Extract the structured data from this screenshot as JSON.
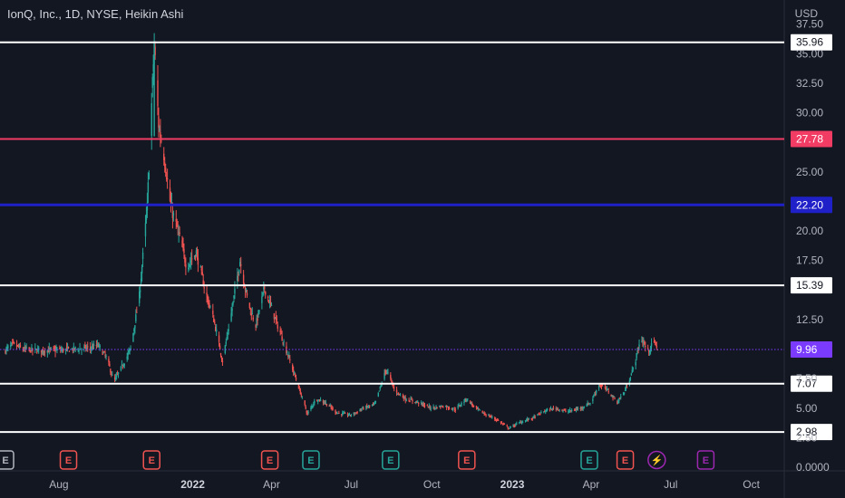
{
  "header": {
    "title": "IonQ, Inc., 1D, NYSE, Heikin Ashi",
    "currency": "USD"
  },
  "colors": {
    "background": "#131722",
    "up": "#26a69a",
    "down": "#ef5350",
    "white_level": "#ffffff",
    "red_level": "#f23c64",
    "blue_level": "#2020c8",
    "purple_level": "#7b3bff",
    "grid": "#1e222d",
    "earnings_red": "#ef5350",
    "earnings_green": "#26a69a",
    "earnings_purple": "#9c27b0",
    "earnings_gray": "#b2b5be"
  },
  "chart_data": {
    "type": "candlestick",
    "title": "IonQ, Inc., 1D, NYSE, Heikin Ashi",
    "ylim": [
      0,
      38.5
    ],
    "y_ticks": [
      "37.50",
      "35.00",
      "32.50",
      "30.00",
      "25.00",
      "20.00",
      "17.50",
      "12.50",
      "7.50",
      "5.00",
      "2.50",
      "0.0000"
    ],
    "x_ticks": [
      {
        "label": "Aug",
        "strong": false
      },
      {
        "label": "2022",
        "strong": true
      },
      {
        "label": "Apr",
        "strong": false
      },
      {
        "label": "Jul",
        "strong": false
      },
      {
        "label": "Oct",
        "strong": false
      },
      {
        "label": "2023",
        "strong": true
      },
      {
        "label": "Apr",
        "strong": false
      },
      {
        "label": "Jul",
        "strong": false
      },
      {
        "label": "Oct",
        "strong": false
      }
    ],
    "price_path": [
      [
        "2021-06-01",
        9.9
      ],
      [
        "2021-06-10",
        10.4
      ],
      [
        "2021-06-20",
        10.0
      ],
      [
        "2021-07-01",
        9.9
      ],
      [
        "2021-07-15",
        9.9
      ],
      [
        "2021-08-01",
        9.9
      ],
      [
        "2021-08-20",
        10.0
      ],
      [
        "2021-09-05",
        10.1
      ],
      [
        "2021-09-15",
        10.3
      ],
      [
        "2021-09-25",
        9.2
      ],
      [
        "2021-10-03",
        7.2
      ],
      [
        "2021-10-12",
        8.5
      ],
      [
        "2021-10-22",
        10.0
      ],
      [
        "2021-11-01",
        14.5
      ],
      [
        "2021-11-10",
        22.0
      ],
      [
        "2021-11-18",
        35.9
      ],
      [
        "2021-11-23",
        29.0
      ],
      [
        "2021-11-30",
        26.0
      ],
      [
        "2021-12-07",
        22.0
      ],
      [
        "2021-12-15",
        20.0
      ],
      [
        "2021-12-25",
        17.0
      ],
      [
        "2022-01-05",
        18.2
      ],
      [
        "2022-01-15",
        15.0
      ],
      [
        "2022-01-25",
        12.5
      ],
      [
        "2022-02-04",
        9.0
      ],
      [
        "2022-02-14",
        13.0
      ],
      [
        "2022-02-24",
        17.5
      ],
      [
        "2022-03-05",
        14.0
      ],
      [
        "2022-03-14",
        12.0
      ],
      [
        "2022-03-24",
        15.2
      ],
      [
        "2022-04-03",
        13.0
      ],
      [
        "2022-04-13",
        11.0
      ],
      [
        "2022-04-22",
        9.0
      ],
      [
        "2022-05-01",
        7.0
      ],
      [
        "2022-05-12",
        4.5
      ],
      [
        "2022-05-22",
        5.8
      ],
      [
        "2022-06-01",
        5.5
      ],
      [
        "2022-06-15",
        4.6
      ],
      [
        "2022-07-01",
        4.4
      ],
      [
        "2022-07-15",
        5.0
      ],
      [
        "2022-07-28",
        5.3
      ],
      [
        "2022-08-10",
        8.3
      ],
      [
        "2022-08-20",
        6.5
      ],
      [
        "2022-09-01",
        5.8
      ],
      [
        "2022-09-15",
        5.5
      ],
      [
        "2022-10-01",
        5.0
      ],
      [
        "2022-10-15",
        5.2
      ],
      [
        "2022-10-28",
        4.9
      ],
      [
        "2022-11-10",
        5.8
      ],
      [
        "2022-11-20",
        5.0
      ],
      [
        "2022-12-01",
        4.5
      ],
      [
        "2022-12-15",
        4.0
      ],
      [
        "2022-12-28",
        3.3
      ],
      [
        "2023-01-10",
        3.8
      ],
      [
        "2023-01-25",
        4.2
      ],
      [
        "2023-02-08",
        4.8
      ],
      [
        "2023-02-20",
        5.0
      ],
      [
        "2023-03-05",
        4.7
      ],
      [
        "2023-03-20",
        5.0
      ],
      [
        "2023-04-01",
        5.5
      ],
      [
        "2023-04-10",
        7.0
      ],
      [
        "2023-04-20",
        6.5
      ],
      [
        "2023-05-01",
        5.5
      ],
      [
        "2023-05-10",
        6.5
      ],
      [
        "2023-05-20",
        8.5
      ],
      [
        "2023-05-28",
        11.0
      ],
      [
        "2023-06-05",
        9.8
      ],
      [
        "2023-06-12",
        10.6
      ],
      [
        "2023-06-18",
        9.9
      ]
    ],
    "levels": [
      {
        "price": 35.96,
        "label": "35.96",
        "style": "white",
        "width": 2
      },
      {
        "price": 27.78,
        "label": "27.78",
        "style": "red",
        "width": 2
      },
      {
        "price": 22.2,
        "label": "22.20",
        "style": "blue",
        "width": 3
      },
      {
        "price": 15.39,
        "label": "15.39",
        "style": "white",
        "width": 2
      },
      {
        "price": 9.96,
        "label": "9.96",
        "style": "purple",
        "width": 1,
        "dotted": true
      },
      {
        "price": 7.07,
        "label": "7.07",
        "style": "white",
        "width": 2
      },
      {
        "price": 2.98,
        "label": "2.98",
        "style": "white",
        "width": 2
      }
    ],
    "earnings": [
      {
        "date": "2021-06-01",
        "letter": "E",
        "kind": "gray"
      },
      {
        "date": "2021-08-12",
        "letter": "E",
        "kind": "red"
      },
      {
        "date": "2021-11-15",
        "letter": "E",
        "kind": "red"
      },
      {
        "date": "2022-03-30",
        "letter": "E",
        "kind": "red"
      },
      {
        "date": "2022-05-16",
        "letter": "E",
        "kind": "green"
      },
      {
        "date": "2022-08-15",
        "letter": "E",
        "kind": "green"
      },
      {
        "date": "2022-11-10",
        "letter": "E",
        "kind": "red"
      },
      {
        "date": "2023-03-30",
        "letter": "E",
        "kind": "green"
      },
      {
        "date": "2023-05-10",
        "letter": "E",
        "kind": "red"
      },
      {
        "date": "2023-06-15",
        "letter": "⚡",
        "kind": "purple-round"
      },
      {
        "date": "2023-08-10",
        "letter": "E",
        "kind": "purple"
      }
    ]
  }
}
